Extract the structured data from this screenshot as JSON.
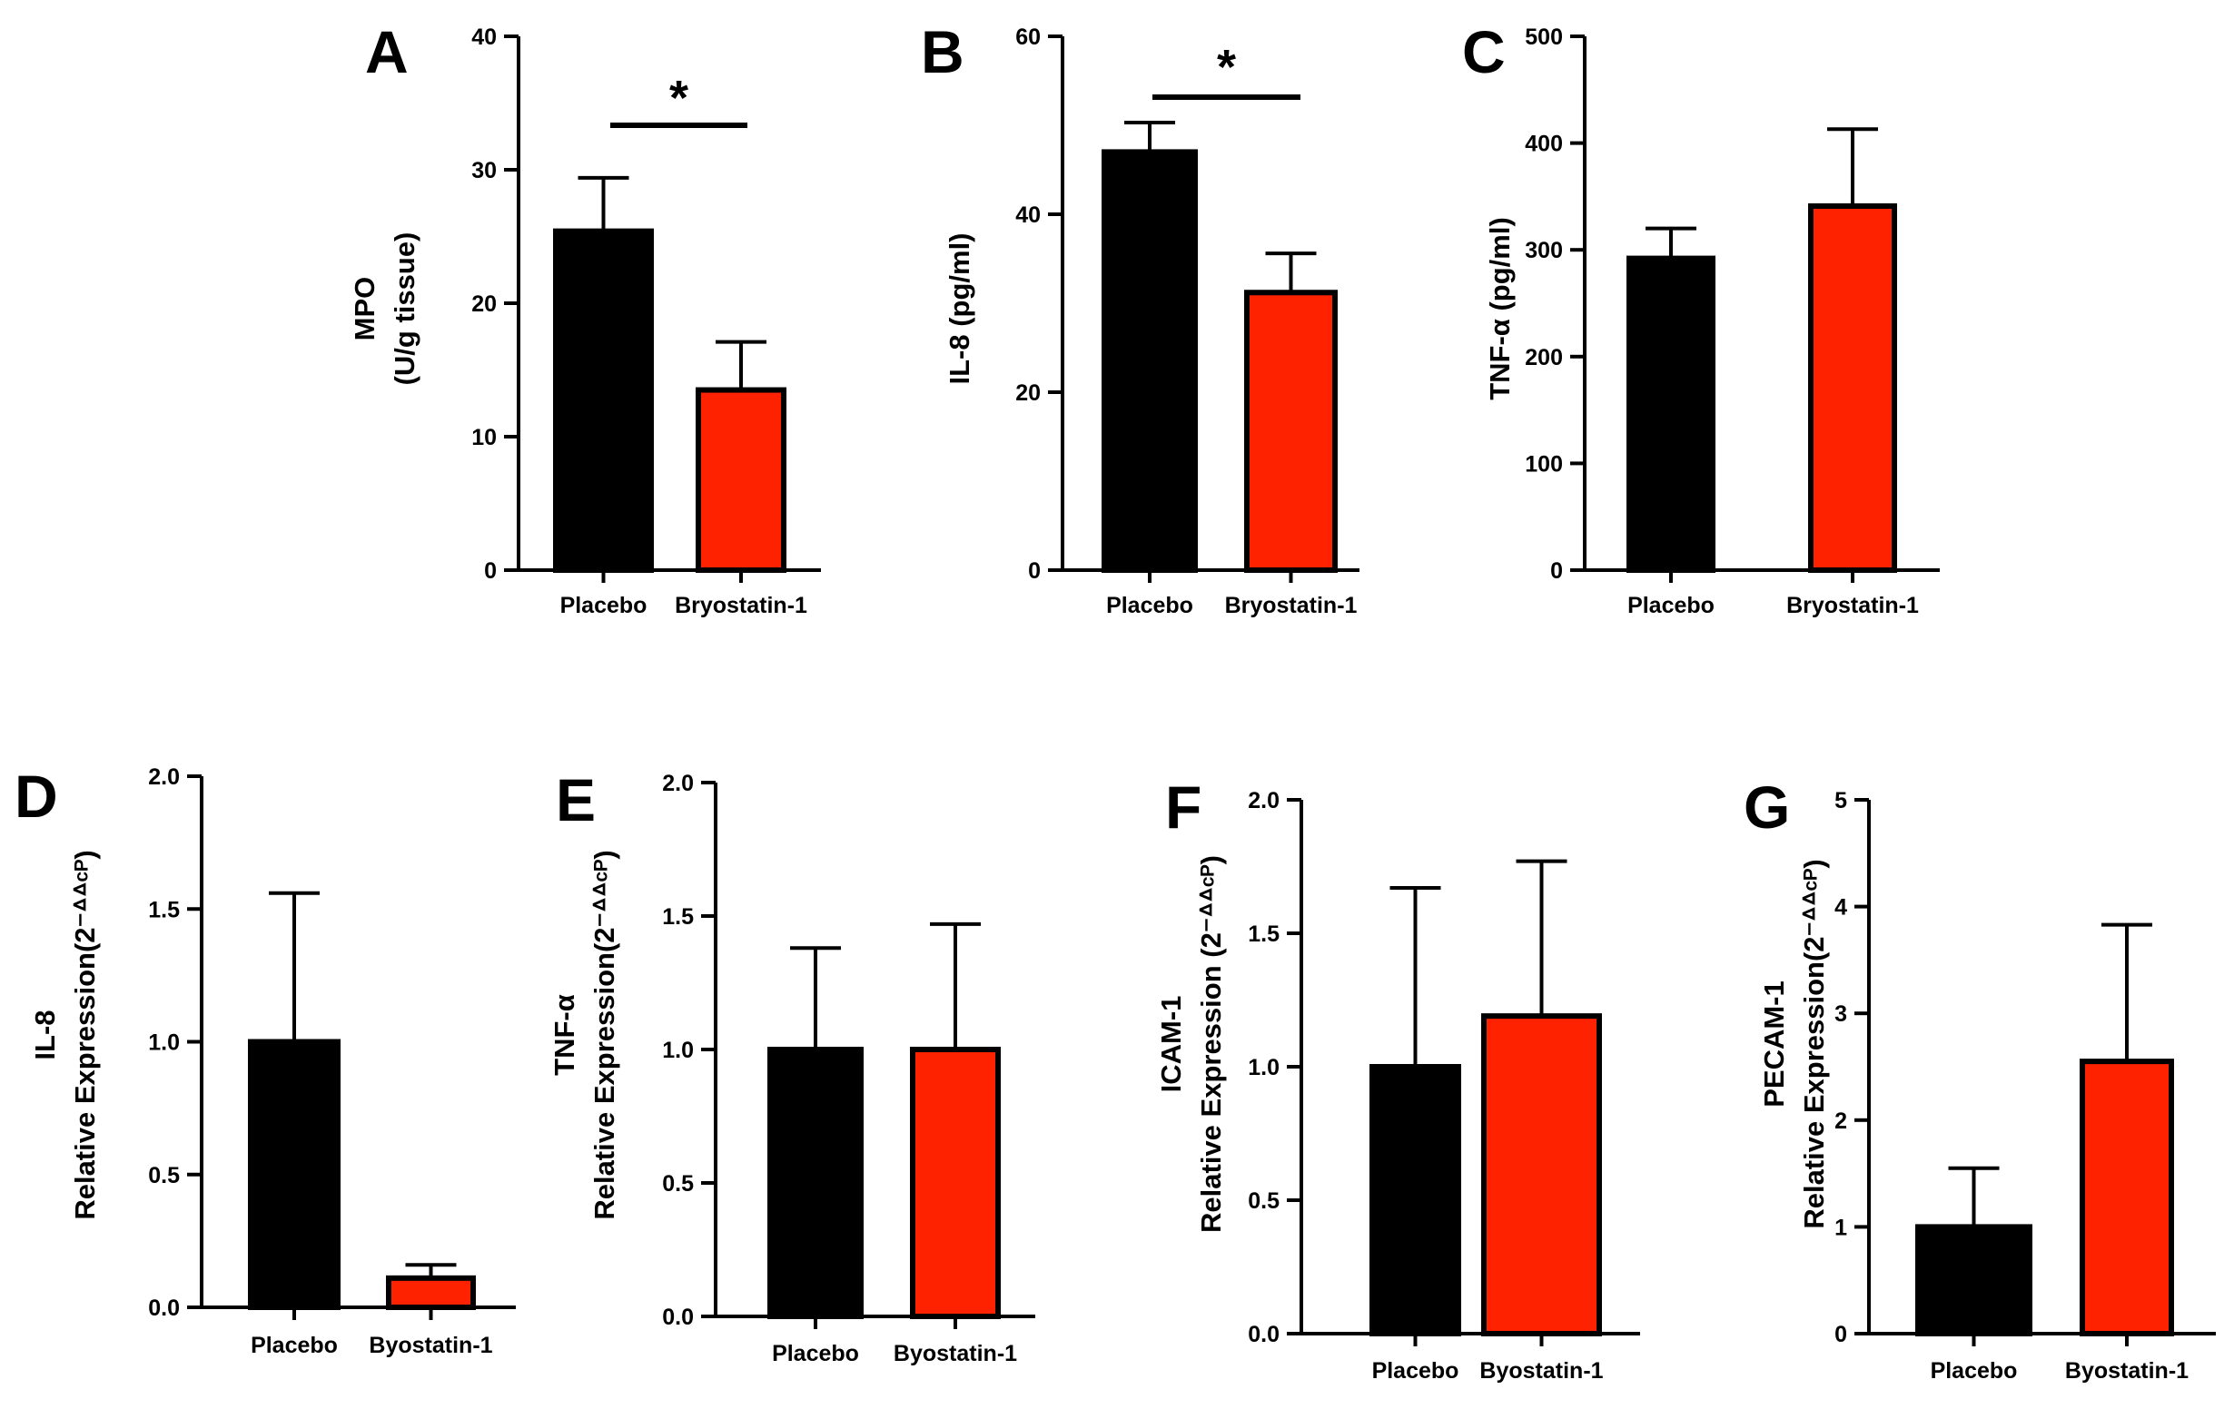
{
  "colors": {
    "placebo": "#000000",
    "treatment": "#ff2200"
  },
  "chart_data": [
    {
      "panel": "A",
      "type": "bar",
      "ylabel": [
        "MPO",
        "(U/g tissue)"
      ],
      "categories": [
        "Placebo",
        "Bryostatin-1"
      ],
      "values": [
        25.4,
        13.5
      ],
      "errors": [
        4.0,
        3.6
      ],
      "ylim": [
        0,
        40
      ],
      "yticks": [
        0,
        10,
        20,
        30,
        40
      ],
      "tick_labels": [
        "0",
        "10",
        "20",
        "30",
        "40"
      ],
      "significance": "*"
    },
    {
      "panel": "B",
      "type": "bar",
      "ylabel": [
        "IL-8 (pg/ml)"
      ],
      "categories": [
        "Placebo",
        "Bryostatin-1"
      ],
      "values": [
        47,
        31.2
      ],
      "errors": [
        3.3,
        4.4
      ],
      "ylim": [
        0,
        60
      ],
      "yticks": [
        0,
        20,
        40,
        60
      ],
      "tick_labels": [
        "0",
        "20",
        "40",
        "60"
      ],
      "significance": "*"
    },
    {
      "panel": "C",
      "type": "bar",
      "ylabel": [
        "TNF-α (pg/ml)"
      ],
      "categories": [
        "Placebo",
        "Bryostatin-1"
      ],
      "values": [
        292,
        341
      ],
      "errors": [
        28,
        72
      ],
      "ylim": [
        0,
        500
      ],
      "yticks": [
        0,
        100,
        200,
        300,
        400,
        500
      ],
      "tick_labels": [
        "0",
        "100",
        "200",
        "300",
        "400",
        "500"
      ],
      "significance": ""
    },
    {
      "panel": "D",
      "type": "bar",
      "ylabel": [
        "IL-8",
        "Relative Expression(2⁻ᐞᐞᶜᴾ)"
      ],
      "categories": [
        "Placebo",
        "Byostatin-1"
      ],
      "values": [
        1.0,
        0.11
      ],
      "errors": [
        0.56,
        0.05
      ],
      "ylim": [
        0,
        2
      ],
      "yticks": [
        0,
        0.5,
        1,
        1.5,
        2
      ],
      "tick_labels": [
        "0.0",
        "0.5",
        "1.0",
        "1.5",
        "2.0"
      ],
      "significance": ""
    },
    {
      "panel": "E",
      "type": "bar",
      "ylabel": [
        "TNF-α",
        "Relative Expression(2⁻ᐞᐞᶜᴾ)"
      ],
      "categories": [
        "Placebo",
        "Byostatin-1"
      ],
      "values": [
        1.0,
        1.0
      ],
      "errors": [
        0.38,
        0.47
      ],
      "ylim": [
        0,
        2
      ],
      "yticks": [
        0,
        0.5,
        1,
        1.5,
        2
      ],
      "tick_labels": [
        "0.0",
        "0.5",
        "1.0",
        "1.5",
        "2.0"
      ],
      "significance": ""
    },
    {
      "panel": "F",
      "type": "bar",
      "ylabel": [
        "ICAM-1",
        "Relative Expression (2⁻ᐞᐞᶜᴾ)"
      ],
      "categories": [
        "Placebo",
        "Byostatin-1"
      ],
      "values": [
        1.0,
        1.19
      ],
      "errors": [
        0.67,
        0.58
      ],
      "ylim": [
        0,
        2
      ],
      "yticks": [
        0,
        0.5,
        1,
        1.5,
        2
      ],
      "tick_labels": [
        "0.0",
        "0.5",
        "1.0",
        "1.5",
        "2.0"
      ],
      "significance": ""
    },
    {
      "panel": "G",
      "type": "bar",
      "ylabel": [
        "PECAM-1",
        "Relative Expression(2⁻ᐞᐞᶜᴾ)"
      ],
      "categories": [
        "Placebo",
        "Byostatin-1"
      ],
      "values": [
        1.0,
        2.55
      ],
      "errors": [
        0.55,
        1.28
      ],
      "ylim": [
        0,
        5
      ],
      "yticks": [
        0,
        1,
        2,
        3,
        4,
        5
      ],
      "tick_labels": [
        "0",
        "1",
        "2",
        "3",
        "4",
        "5"
      ],
      "significance": ""
    }
  ]
}
